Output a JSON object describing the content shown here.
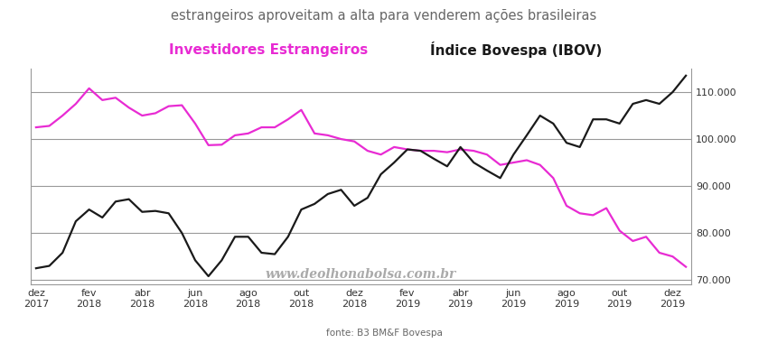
{
  "chart_data": {
    "type": "line",
    "title": "estrangeiros aproveitam a alta para venderem ações brasileiras",
    "categories": [
      "dez\n2017",
      null,
      null,
      null,
      "fev\n2018",
      null,
      null,
      null,
      "abr\n2018",
      null,
      null,
      null,
      "jun\n2018",
      null,
      null,
      null,
      "ago\n2018",
      null,
      null,
      null,
      "out\n2018",
      null,
      null,
      null,
      "dez\n2018",
      null,
      null,
      null,
      "fev\n2019",
      null,
      null,
      null,
      "abr\n2019",
      null,
      null,
      null,
      "jun\n2019",
      null,
      null,
      null,
      "ago\n2019",
      null,
      null,
      null,
      "out\n2019",
      null,
      null,
      null,
      "dez\n2019",
      null
    ],
    "series": [
      {
        "name": "Investidores Estrangeiros",
        "color": "#e82bd3",
        "line_style": "solid",
        "values": [
          102500,
          102800,
          105000,
          107500,
          110800,
          108300,
          108800,
          106700,
          105000,
          105500,
          107000,
          107200,
          103300,
          98700,
          98800,
          100800,
          101200,
          102500,
          102500,
          104200,
          106200,
          101200,
          100800,
          100000,
          99500,
          97500,
          96700,
          98300,
          97800,
          97500,
          97500,
          97200,
          97800,
          97500,
          96700,
          94500,
          95000,
          95500,
          94500,
          91700,
          85800,
          84200,
          83800,
          85300,
          80500,
          78300,
          79200,
          75800,
          75000,
          72800
        ]
      },
      {
        "name": "Índice Bovespa (IBOV)",
        "color": "#1a1a1a",
        "line_style": "solid",
        "values": [
          72500,
          73000,
          75800,
          82500,
          85000,
          83300,
          86700,
          87200,
          84500,
          84700,
          84200,
          80000,
          74200,
          70800,
          74200,
          79200,
          79200,
          75800,
          75500,
          79200,
          85000,
          86200,
          88300,
          89200,
          85800,
          87500,
          92500,
          95000,
          97800,
          97500,
          95800,
          94200,
          98300,
          95000,
          93300,
          91700,
          96700,
          100800,
          105000,
          103300,
          99200,
          98300,
          104200,
          104200,
          103300,
          107500,
          108300,
          107500,
          110000,
          113500
        ]
      }
    ],
    "ylim": [
      69000,
      115000
    ],
    "yticks": [
      {
        "value": 70000,
        "label": "70.000"
      },
      {
        "value": 80000,
        "label": "80.000"
      },
      {
        "value": 90000,
        "label": "90.000"
      },
      {
        "value": 100000,
        "label": "100.000"
      },
      {
        "value": 110000,
        "label": "110.000"
      }
    ],
    "grid": "y",
    "annotation": "www.deolhonabolsa.com.br",
    "source": "fonte: B3 BM&F Bovespa"
  }
}
